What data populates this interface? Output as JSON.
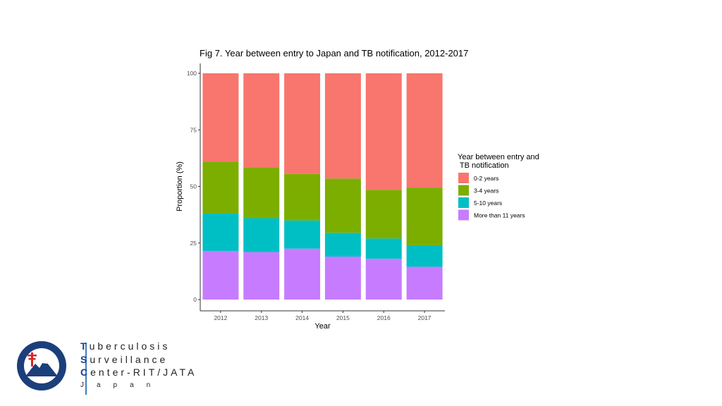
{
  "chart_data": {
    "type": "bar",
    "stacked": true,
    "title": "Fig 7. Year between entry to Japan and TB notification, 2012-2017",
    "xlabel": "Year",
    "ylabel": "Proportion (%)",
    "ylim": [
      0,
      100
    ],
    "yticks": [
      "0",
      "25",
      "50",
      "75",
      "100"
    ],
    "categories": [
      "2012",
      "2013",
      "2014",
      "2015",
      "2016",
      "2017"
    ],
    "legend_title": "Year between entry and\n TB notification",
    "legend_position": "right",
    "series": [
      {
        "name": "More than 11 years",
        "color": "#C77CFF",
        "values": [
          21.5,
          21.0,
          22.5,
          19.0,
          18.0,
          14.5
        ]
      },
      {
        "name": "5-10 years",
        "color": "#00BFC4",
        "values": [
          16.5,
          15.0,
          12.5,
          10.5,
          9.0,
          9.5
        ]
      },
      {
        "name": "3-4 years",
        "color": "#7CAE00",
        "values": [
          23.0,
          22.5,
          20.5,
          24.0,
          21.5,
          25.5
        ]
      },
      {
        "name": "0-2 years",
        "color": "#F8766D",
        "values": [
          39.0,
          41.5,
          44.5,
          46.5,
          51.5,
          50.5
        ]
      }
    ],
    "legend_order": [
      "0-2 years",
      "3-4 years",
      "5-10 years",
      "More than 11 years"
    ]
  },
  "footer": {
    "line1_initial": "T",
    "line1_rest": "uberculosis",
    "line2_initial": "S",
    "line2_rest": "urveillance",
    "line3_initial": "C",
    "line3_rest": "enter-RIT/JATA",
    "line4": "Japan"
  }
}
